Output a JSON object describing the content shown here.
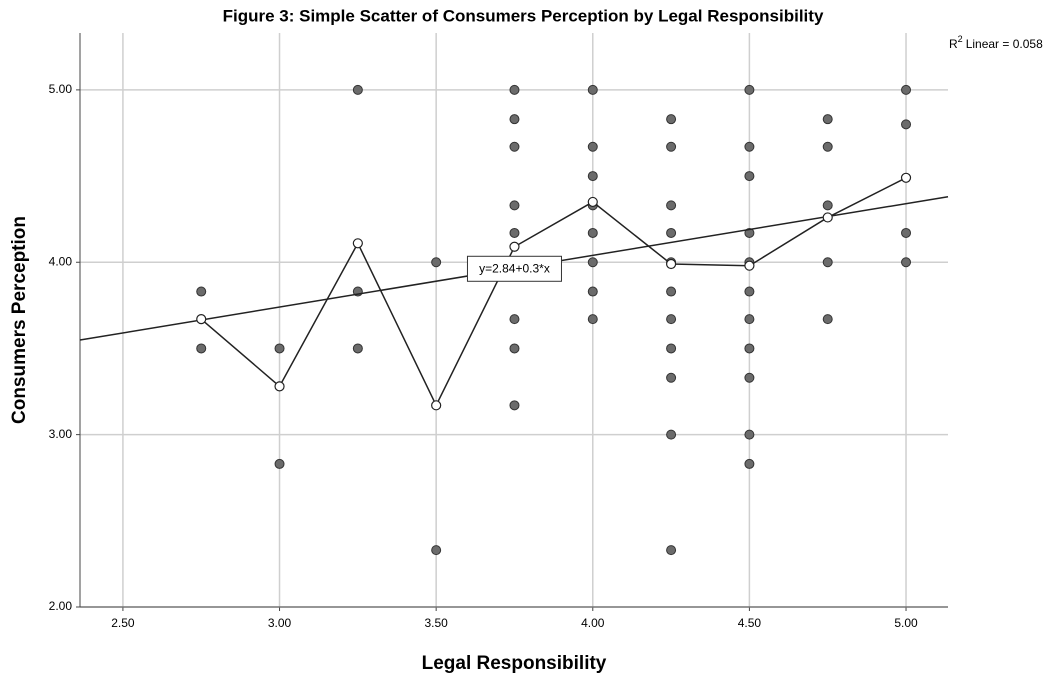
{
  "chart_data": {
    "type": "scatter",
    "title": "Figure 3: Simple Scatter of Consumers Perception by Legal Responsibility",
    "x_label": "Legal Responsibility",
    "y_label": "Consumers Perception",
    "xlim": [
      2.363,
      5.134
    ],
    "ylim": [
      2,
      5.33
    ],
    "xticks": [
      {
        "value": 2.5,
        "label": "2.50"
      },
      {
        "value": 3,
        "label": "3.00"
      },
      {
        "value": 3.5,
        "label": "3.50"
      },
      {
        "value": 4,
        "label": "4.00"
      },
      {
        "value": 4.5,
        "label": "4.50"
      },
      {
        "value": 5,
        "label": "5.00"
      }
    ],
    "yticks": [
      {
        "value": 2,
        "label": "2.00"
      },
      {
        "value": 3,
        "label": "3.00"
      },
      {
        "value": 4,
        "label": "4.00"
      },
      {
        "value": 5,
        "label": "5.00"
      }
    ],
    "grid": true,
    "points": {
      "color": "#6b6b6b",
      "x": [
        2.75,
        2.75,
        3,
        3,
        3.25,
        3.25,
        3.25,
        3.5,
        3.5,
        3.75,
        3.75,
        3.75,
        3.75,
        3.75,
        3.75,
        3.75,
        3.75,
        4,
        4,
        4,
        4,
        4,
        4,
        4,
        4,
        4.25,
        4.25,
        4.25,
        4.25,
        4.25,
        4.25,
        4.25,
        4.25,
        4.25,
        4.25,
        4.25,
        4.5,
        4.5,
        4.5,
        4.5,
        4.5,
        4.5,
        4.5,
        4.5,
        4.5,
        4.5,
        4.5,
        4.75,
        4.75,
        4.75,
        4.75,
        4.75,
        5,
        5,
        5,
        5
      ],
      "y": [
        3.83,
        3.5,
        3.5,
        2.83,
        5,
        3.83,
        3.5,
        4,
        2.33,
        5,
        4.83,
        4.67,
        4.33,
        4.17,
        3.67,
        3.5,
        3.17,
        5,
        4.67,
        4.5,
        4.33,
        4.17,
        4,
        3.83,
        3.67,
        4.83,
        4.67,
        4.33,
        4.17,
        4,
        3.83,
        3.67,
        3.5,
        3.33,
        3,
        2.33,
        5,
        4.67,
        4.5,
        4.17,
        4,
        3.83,
        3.67,
        3.5,
        3.33,
        3,
        2.83,
        4.83,
        4.67,
        4.33,
        4,
        3.67,
        5,
        4.8,
        4.17,
        4
      ]
    },
    "means": {
      "color": "#222222",
      "x": [
        2.75,
        3,
        3.25,
        3.5,
        3.75,
        4,
        4.25,
        4.5,
        4.75,
        5
      ],
      "y": [
        3.67,
        3.28,
        4.11,
        3.17,
        4.09,
        4.35,
        3.99,
        3.98,
        4.26,
        4.49
      ]
    },
    "fit": {
      "intercept": 2.84,
      "slope": 0.3,
      "label": "y=2.84+0.3*x",
      "color": "#222222"
    },
    "r_squared": {
      "symbol": "R",
      "sup": "2",
      "text": "Linear = 0.058"
    }
  }
}
